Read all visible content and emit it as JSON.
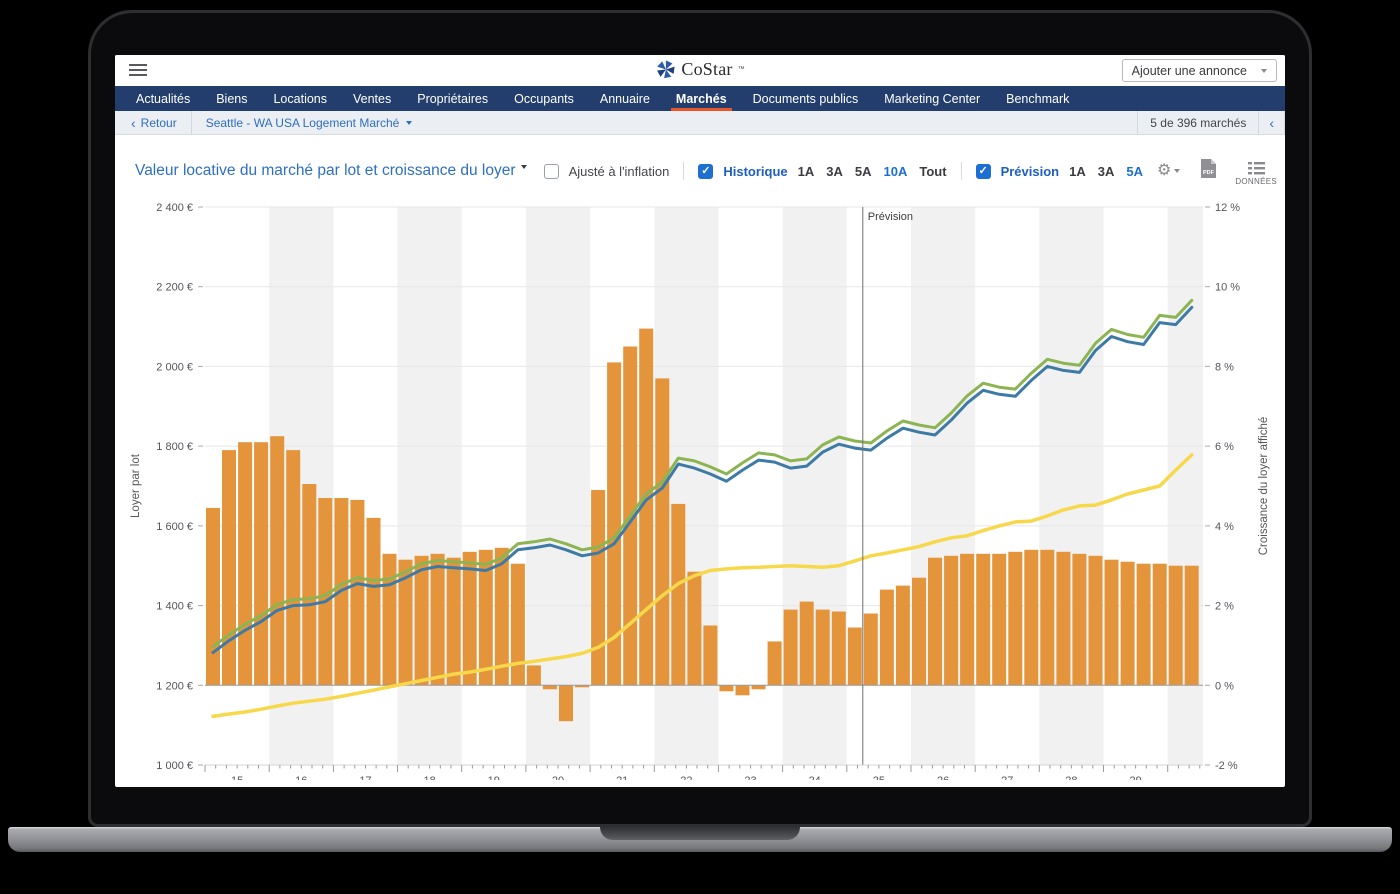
{
  "header": {
    "brand": "CoStar",
    "brand_tm": "™",
    "add_listing_label": "Ajouter une annonce"
  },
  "nav": {
    "items": [
      {
        "label": "Actualités",
        "active": false
      },
      {
        "label": "Biens",
        "active": false
      },
      {
        "label": "Locations",
        "active": false
      },
      {
        "label": "Ventes",
        "active": false
      },
      {
        "label": "Propriétaires",
        "active": false
      },
      {
        "label": "Occupants",
        "active": false
      },
      {
        "label": "Annuaire",
        "active": false
      },
      {
        "label": "Marchés",
        "active": true
      },
      {
        "label": "Documents publics",
        "active": false
      },
      {
        "label": "Marketing Center",
        "active": false
      },
      {
        "label": "Benchmark",
        "active": false
      }
    ]
  },
  "breadcrumb": {
    "back_label": "Retour",
    "market_name": "Seattle - WA USA Logement Marché",
    "counter": "5 de 396 marchés"
  },
  "icons": {
    "check": "✓",
    "gear": "⚙",
    "chevron_left": "‹",
    "pdf_label": "PDF"
  },
  "chart_header": {
    "title": "Valeur locative du marché par lot et croissance du loyer",
    "inflation_label": "Ajusté à l'inflation",
    "inflation_checked": false,
    "historique": {
      "label": "Historique",
      "checked": true,
      "options": [
        "1A",
        "3A",
        "5A",
        "10A",
        "Tout"
      ],
      "selected": "10A"
    },
    "prevision": {
      "label": "Prévision",
      "checked": true,
      "options": [
        "1A",
        "3A",
        "5A"
      ],
      "selected": "5A"
    },
    "data_button_label": "DONNÉES"
  },
  "chart_data": {
    "type": "combo-bar-line",
    "title": "Valeur locative du marché par lot et croissance du loyer",
    "x_axis": {
      "min": 14.5,
      "max": 30.05,
      "year_labels": [
        "15",
        "16",
        "17",
        "18",
        "19",
        "20",
        "21",
        "22",
        "23",
        "24",
        "25",
        "26",
        "27",
        "28",
        "29"
      ]
    },
    "left_axis": {
      "label": "Loyer par lot",
      "unit": "€",
      "min": 1000,
      "max": 2400,
      "step": 200
    },
    "right_axis": {
      "label": "Croissance du loyer affiché",
      "unit": "%",
      "min": -2,
      "max": 12,
      "step": 2
    },
    "forecast_marker": {
      "x": 24.75,
      "label": "Prévision"
    },
    "shaded_band_years": [
      16,
      18,
      20,
      22,
      24,
      26,
      28,
      30
    ],
    "bars": {
      "name": "Croissance du loyer (barres)",
      "axis": "right",
      "color": "#E4953C",
      "x_start": 14.5,
      "x_step": 0.25,
      "values": [
        4.45,
        5.9,
        6.1,
        6.1,
        6.25,
        5.9,
        5.05,
        4.7,
        4.7,
        4.65,
        4.2,
        3.3,
        3.15,
        3.25,
        3.3,
        3.2,
        3.35,
        3.4,
        3.45,
        3.05,
        0.5,
        -0.1,
        -0.9,
        -0.05,
        4.9,
        8.1,
        8.5,
        8.95,
        7.7,
        4.55,
        2.85,
        1.5,
        -0.15,
        -0.25,
        -0.1,
        1.1,
        1.9,
        2.1,
        1.9,
        1.85,
        1.45,
        1.8,
        2.4,
        2.5,
        2.7,
        3.2,
        3.25,
        3.3,
        3.3,
        3.3,
        3.35,
        3.4,
        3.4,
        3.35,
        3.3,
        3.25,
        3.15,
        3.1,
        3.05,
        3.05,
        3.0,
        3.0
      ]
    },
    "series": [
      {
        "name": "ligne-verte",
        "axis": "left",
        "color": "#8CB452",
        "width": 3,
        "values": [
          1297,
          1327,
          1353,
          1375,
          1403,
          1415,
          1417,
          1425,
          1453,
          1470,
          1463,
          1467,
          1485,
          1505,
          1513,
          1510,
          1507,
          1503,
          1520,
          1555,
          1560,
          1567,
          1555,
          1540,
          1547,
          1570,
          1625,
          1680,
          1710,
          1770,
          1763,
          1748,
          1730,
          1758,
          1783,
          1778,
          1763,
          1768,
          1803,
          1823,
          1813,
          1808,
          1838,
          1863,
          1853,
          1846,
          1883,
          1926,
          1958,
          1948,
          1943,
          1983,
          2018,
          2008,
          2003,
          2058,
          2093,
          2080,
          2073,
          2128,
          2123,
          2166
        ]
      },
      {
        "name": "ligne-bleue",
        "axis": "left",
        "color": "#3D7AA6",
        "width": 3,
        "values": [
          1282,
          1312,
          1338,
          1360,
          1388,
          1400,
          1402,
          1410,
          1438,
          1455,
          1448,
          1452,
          1470,
          1490,
          1498,
          1495,
          1492,
          1488,
          1505,
          1540,
          1545,
          1552,
          1540,
          1525,
          1532,
          1555,
          1610,
          1665,
          1695,
          1755,
          1745,
          1730,
          1712,
          1740,
          1765,
          1760,
          1745,
          1750,
          1785,
          1805,
          1795,
          1790,
          1820,
          1845,
          1835,
          1828,
          1865,
          1908,
          1940,
          1930,
          1925,
          1965,
          2000,
          1990,
          1985,
          2040,
          2075,
          2062,
          2055,
          2110,
          2105,
          2148
        ]
      },
      {
        "name": "ligne-jaune",
        "axis": "left",
        "color": "#F7D84B",
        "width": 3.5,
        "values": [
          1122,
          1128,
          1133,
          1140,
          1148,
          1155,
          1160,
          1165,
          1172,
          1180,
          1188,
          1196,
          1204,
          1212,
          1220,
          1228,
          1233,
          1240,
          1248,
          1255,
          1260,
          1266,
          1272,
          1280,
          1295,
          1320,
          1355,
          1390,
          1425,
          1455,
          1475,
          1488,
          1492,
          1495,
          1496,
          1498,
          1500,
          1498,
          1496,
          1500,
          1512,
          1525,
          1532,
          1540,
          1548,
          1560,
          1570,
          1575,
          1588,
          1600,
          1610,
          1612,
          1625,
          1640,
          1650,
          1652,
          1665,
          1680,
          1690,
          1700,
          1740,
          1778
        ]
      }
    ]
  }
}
